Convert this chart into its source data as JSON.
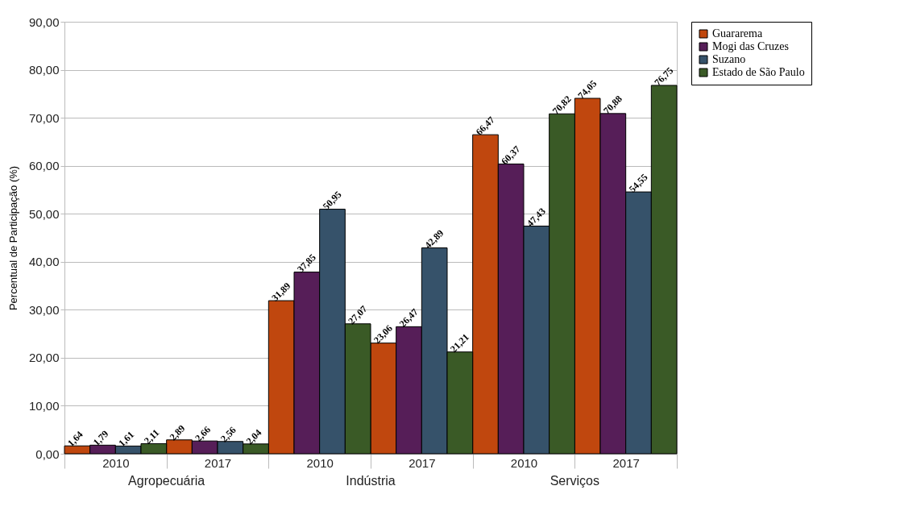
{
  "chart_data": {
    "type": "bar",
    "ylabel": "Percentual de Participação (%)",
    "categories": [
      "2010",
      "2017",
      "2010",
      "2017",
      "2010",
      "2017"
    ],
    "annotations": [
      "Agropecuária",
      "Indústria",
      "Serviços"
    ],
    "series": [
      {
        "name": "Guararema",
        "color": "#c0470e",
        "values": [
          1.64,
          2.89,
          31.89,
          23.06,
          66.47,
          74.05
        ],
        "value_labels": [
          "1,64",
          "2,89",
          "31,89",
          "23,06",
          "66,47",
          "74,05"
        ]
      },
      {
        "name": "Mogi das Cruzes",
        "color": "#561e58",
        "values": [
          1.79,
          2.66,
          37.85,
          26.47,
          60.37,
          70.88
        ],
        "value_labels": [
          "1,79",
          "2,66",
          "37,85",
          "26,47",
          "60,37",
          "70,88"
        ]
      },
      {
        "name": "Suzano",
        "color": "#36526a",
        "values": [
          1.61,
          2.56,
          50.95,
          42.89,
          47.43,
          54.55
        ],
        "value_labels": [
          "1,61",
          "2,56",
          "50,95",
          "42,89",
          "47,43",
          "54,55"
        ]
      },
      {
        "name": "Estado de São Paulo",
        "color": "#3a5a26",
        "values": [
          2.11,
          2.04,
          27.07,
          21.21,
          70.82,
          76.75
        ],
        "value_labels": [
          "2,11",
          "2,04",
          "27,07",
          "21,21",
          "70,82",
          "76,75"
        ]
      }
    ],
    "ylim": [
      0,
      90
    ],
    "yticks": [
      {
        "value": 0,
        "label": "0,00"
      },
      {
        "value": 10,
        "label": "10,00"
      },
      {
        "value": 20,
        "label": "20,00"
      },
      {
        "value": 30,
        "label": "30,00"
      },
      {
        "value": 40,
        "label": "40,00"
      },
      {
        "value": 50,
        "label": "50,00"
      },
      {
        "value": 60,
        "label": "60,00"
      },
      {
        "value": 70,
        "label": "70,00"
      },
      {
        "value": 80,
        "label": "80,00"
      },
      {
        "value": 90,
        "label": "90,00"
      }
    ],
    "grid": "y",
    "legend": "right"
  }
}
